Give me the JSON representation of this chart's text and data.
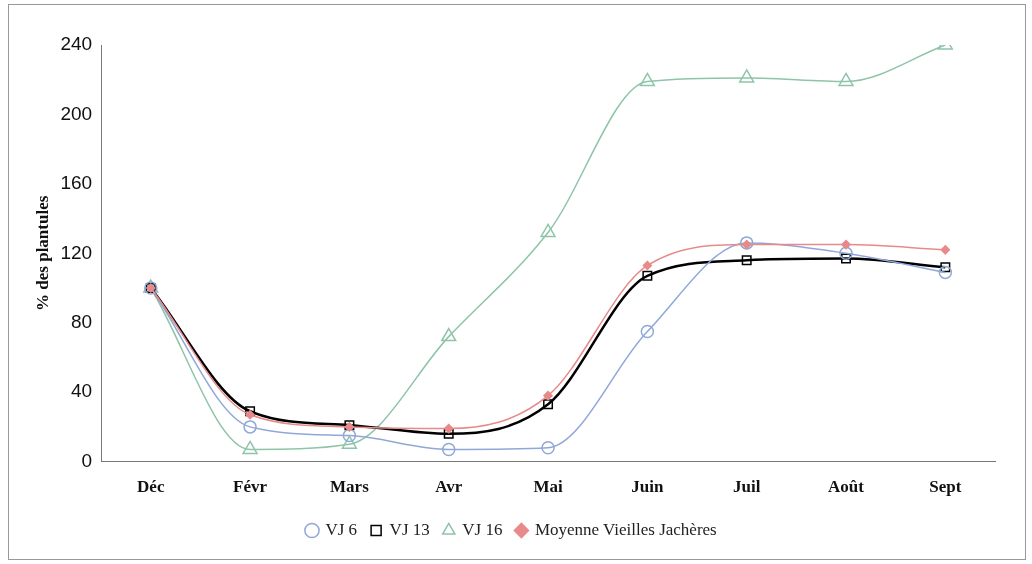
{
  "chart_data": {
    "type": "line",
    "ylabel": "% des plantules",
    "categories": [
      "Déc",
      "Févr",
      "Mars",
      "Avr",
      "Mai",
      "Juin",
      "Juil",
      "Août",
      "Sept"
    ],
    "series": [
      {
        "name": "VJ 6",
        "color": "#8fa8d8",
        "marker": "circle",
        "values": [
          100,
          20,
          15,
          7,
          8,
          75,
          126,
          120,
          109
        ]
      },
      {
        "name": "VJ 13",
        "color": "#000000",
        "marker": "square",
        "values": [
          100,
          29,
          21,
          16,
          33,
          107,
          116,
          117,
          112
        ]
      },
      {
        "name": "VJ 16",
        "color": "#8ec4a8",
        "marker": "triangle",
        "values": [
          100,
          7,
          10,
          72,
          132,
          219,
          221,
          219,
          240
        ]
      },
      {
        "name": "Moyenne Vieilles Jachères",
        "color": "#e88a8a",
        "marker": "diamond",
        "values": [
          100,
          27,
          20,
          19,
          38,
          113,
          125,
          125,
          122
        ]
      }
    ],
    "ylim": [
      0,
      240
    ],
    "yticks": [
      0,
      40,
      80,
      120,
      160,
      200,
      240
    ],
    "grid": false,
    "legend": "bottom"
  }
}
